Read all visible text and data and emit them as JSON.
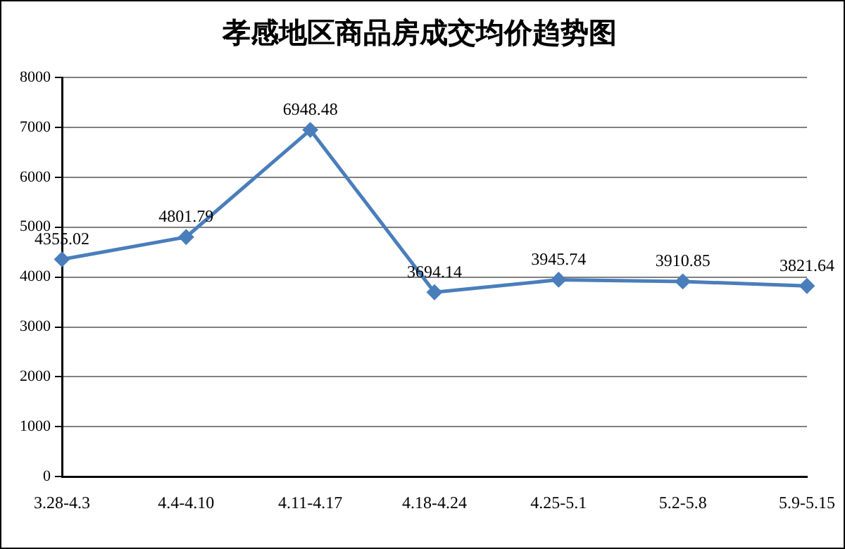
{
  "chart_data": {
    "type": "line",
    "title": "孝感地区商品房成交均价趋势图",
    "categories": [
      "3.28-4.3",
      "4.4-4.10",
      "4.11-4.17",
      "4.18-4.24",
      "4.25-5.1",
      "5.2-5.8",
      "5.9-5.15"
    ],
    "series": [
      {
        "color": "#4a7ebb",
        "values": [
          4355.02,
          4801.79,
          6948.48,
          3694.14,
          3945.74,
          3910.85,
          3821.64
        ]
      }
    ],
    "ylim": [
      0,
      8000
    ],
    "yticks": [
      0,
      1000,
      2000,
      3000,
      4000,
      5000,
      6000,
      7000,
      8000
    ],
    "grid": "y",
    "legend": false,
    "marker": "diamond",
    "line_style": "solid",
    "data_labels": true
  }
}
